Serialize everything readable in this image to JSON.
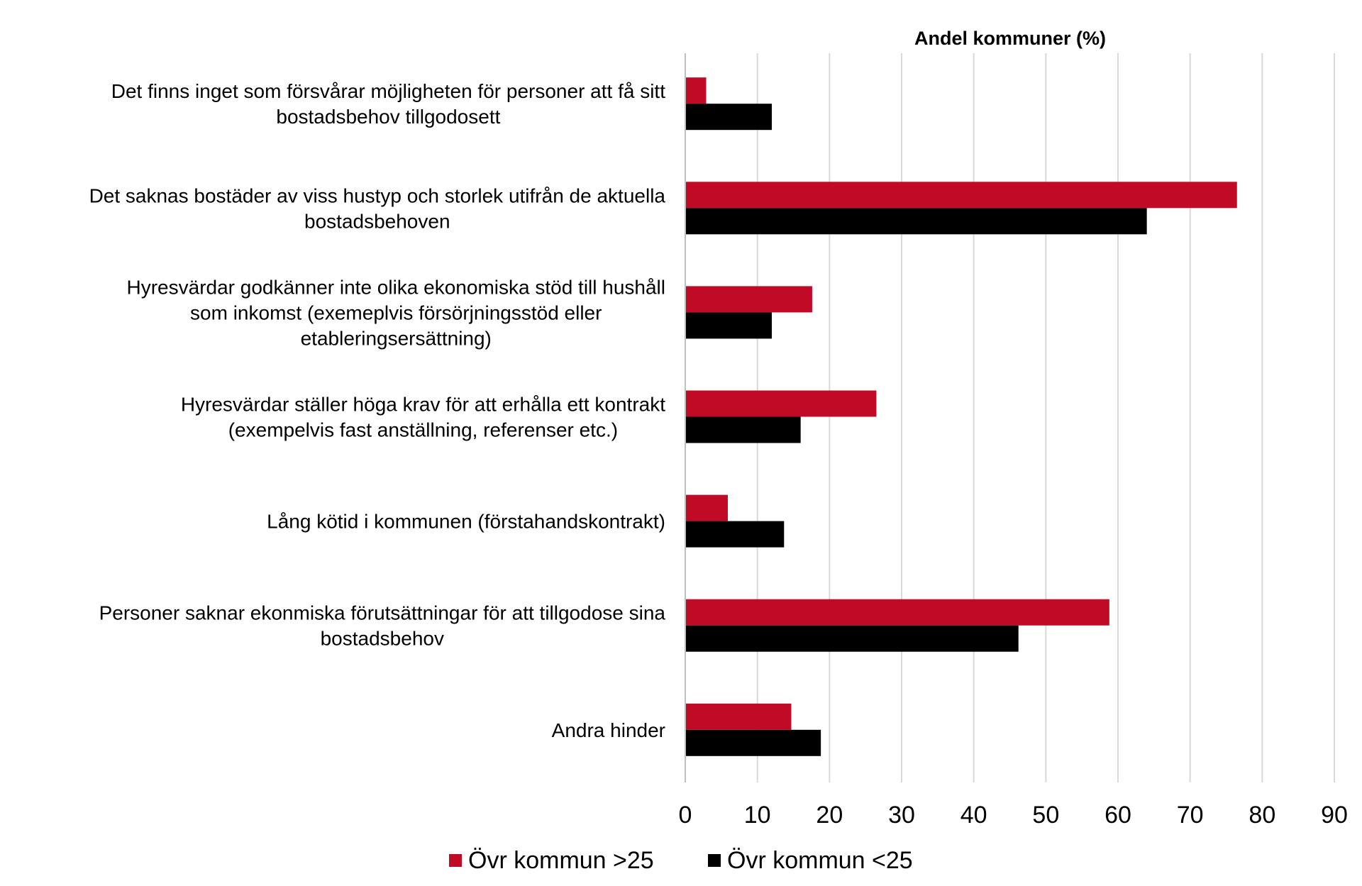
{
  "chart_data": {
    "type": "bar",
    "orientation": "horizontal",
    "title": "Andel kommuner (%)",
    "xlabel": "Andel kommuner (%)",
    "ylabel": "",
    "xlim": [
      0,
      90
    ],
    "x_ticks": [
      "0",
      "10",
      "20",
      "30",
      "40",
      "50",
      "60",
      "70",
      "80",
      "90"
    ],
    "grid": true,
    "legend_position": "bottom",
    "categories": [
      [
        "Det finns inget som försvårar möjligheten för personer att få sitt",
        "bostadsbehov tillgodosett"
      ],
      [
        "Det saknas bostäder av viss hustyp och storlek utifrån de aktuella",
        "bostadsbehoven"
      ],
      [
        "Hyresvärdar godkänner inte olika ekonomiska stöd till hushåll",
        "som inkomst (exemeplvis försörjningsstöd eller",
        "etableringsersättning)"
      ],
      [
        "Hyresvärdar ställer höga krav för att erhålla ett kontrakt",
        "(exempelvis fast anställning, referenser etc.)"
      ],
      [
        "Lång kötid i kommunen (förstahandskontrakt)"
      ],
      [
        "Personer saknar ekonmiska förutsättningar för att tillgodose sina",
        "bostadsbehov"
      ],
      [
        "Andra hinder"
      ]
    ],
    "series": [
      {
        "name": "Övr kommun >25",
        "color": "#C00A26",
        "values": [
          2.9,
          76.5,
          17.6,
          26.5,
          5.9,
          58.8,
          14.7
        ]
      },
      {
        "name": "Övr kommun <25",
        "color": "#000000",
        "values": [
          12.0,
          64.0,
          12.0,
          16.0,
          13.7,
          46.2,
          18.8
        ]
      }
    ]
  }
}
